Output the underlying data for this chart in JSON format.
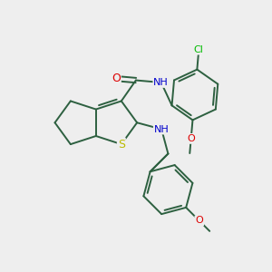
{
  "bg_color": "#eeeeee",
  "bond_color": "#2d6040",
  "atom_colors": {
    "O": "#dd0000",
    "N": "#0000cc",
    "S": "#bbbb00",
    "Cl": "#00bb00",
    "C": "#2d6040"
  },
  "figsize": [
    3.0,
    3.0
  ],
  "dpi": 100
}
